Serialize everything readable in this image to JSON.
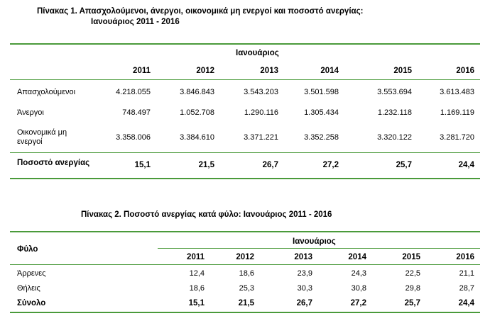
{
  "table1": {
    "title_line1": "Πίνακας 1. Απασχολούμενοι, άνεργοι, οικονομικά μη ενεργοί και ποσοστό ανεργίας:",
    "title_line2": "Ιανουάριος 2011 - 2016",
    "group_header": "Ιανουάριος",
    "years": [
      "2011",
      "2012",
      "2013",
      "2014",
      "2015",
      "2016"
    ],
    "rows": [
      {
        "label": "Απασχολούμενοι",
        "values": [
          "4.218.055",
          "3.846.843",
          "3.543.203",
          "3.501.598",
          "3.553.694",
          "3.613.483"
        ]
      },
      {
        "label": "Άνεργοι",
        "values": [
          "748.497",
          "1.052.708",
          "1.290.116",
          "1.305.434",
          "1.232.118",
          "1.169.119"
        ]
      },
      {
        "label_line1": "Οικονομικά μη",
        "label_line2": "ενεργοί",
        "values": [
          "3.358.006",
          "3.384.610",
          "3.371.221",
          "3.352.258",
          "3.320.122",
          "3.281.720"
        ]
      },
      {
        "label": "Ποσοστό ανεργίας",
        "values": [
          "15,1",
          "21,5",
          "26,7",
          "27,2",
          "25,7",
          "24,4"
        ]
      }
    ]
  },
  "table2": {
    "title": "Πίνακας 2. Ποσοστό ανεργίας κατά φύλο: Ιανουάριος 2011 - 2016",
    "row_header": "Φύλο",
    "group_header": "Ιανουάριος",
    "years": [
      "2011",
      "2012",
      "2013",
      "2014",
      "2015",
      "2016"
    ],
    "rows": [
      {
        "label": "Άρρενες",
        "values": [
          "12,4",
          "18,6",
          "23,9",
          "24,3",
          "22,5",
          "21,1"
        ]
      },
      {
        "label": "Θήλεις",
        "values": [
          "18,6",
          "25,3",
          "30,3",
          "30,8",
          "29,8",
          "28,7"
        ]
      },
      {
        "label": "Σύνολο",
        "values": [
          "15,1",
          "21,5",
          "26,7",
          "27,2",
          "25,7",
          "24,4"
        ]
      }
    ]
  }
}
